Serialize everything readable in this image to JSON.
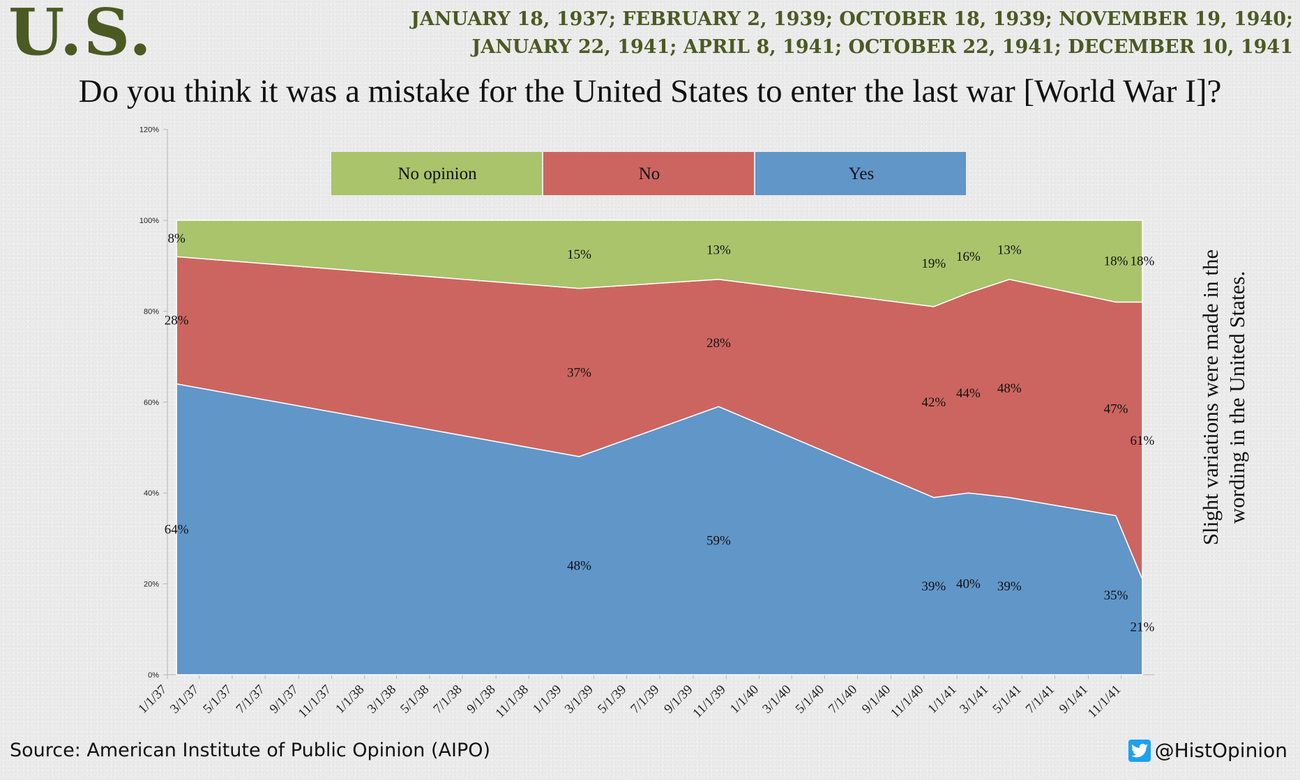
{
  "header": {
    "country": "U.S.",
    "dates_line1": "JANUARY 18, 1937; FEBRUARY 2, 1939; OCTOBER 18, 1939; NOVEMBER 19, 1940;",
    "dates_line2": "JANUARY 22, 1941; APRIL 8, 1941; OCTOBER 22, 1941; DECEMBER 10, 1941",
    "question": "Do you think it was a mistake for the United States to enter the last war [World War I]?"
  },
  "side_note": {
    "line1": "Slight variations were made in the",
    "line2": "wording in the United States."
  },
  "footer": {
    "source": "Source: American Institute of Public Opinion (AIPO)",
    "handle": "@HistOpinion",
    "handle_icon": "twitter-icon"
  },
  "colors": {
    "yes": "#6196c9",
    "no": "#cc6560",
    "no_opinion": "#a9c46b",
    "header_text": "#4b5a22",
    "twitter": "#1da1f2"
  },
  "chart_data": {
    "type": "area",
    "stacked": true,
    "x_axis": "date",
    "x": [
      "1937-01-18",
      "1939-02-02",
      "1939-10-18",
      "1940-11-19",
      "1941-01-22",
      "1941-04-08",
      "1941-10-22",
      "1941-12-10"
    ],
    "series": [
      {
        "name": "Yes",
        "color": "#6196c9",
        "values": [
          64,
          48,
          59,
          39,
          40,
          39,
          35,
          21
        ],
        "labels": [
          "64%",
          "48%",
          "59%",
          "39%",
          "40%",
          "39%",
          "35%",
          "21%"
        ]
      },
      {
        "name": "No",
        "color": "#cc6560",
        "values": [
          28,
          37,
          28,
          42,
          44,
          48,
          47,
          61
        ],
        "labels": [
          "28%",
          "37%",
          "28%",
          "42%",
          "44%",
          "48%",
          "47%",
          "61%"
        ]
      },
      {
        "name": "No opinion",
        "color": "#a9c46b",
        "values": [
          8,
          15,
          13,
          19,
          16,
          13,
          18,
          18
        ],
        "labels": [
          "8%",
          "15%",
          "13%",
          "19%",
          "16%",
          "13%",
          "18%",
          "18%"
        ]
      }
    ],
    "legend_order": [
      "No opinion",
      "No",
      "Yes"
    ],
    "legend_position": "top-center",
    "ylim": [
      0,
      120
    ],
    "yticks": [
      0,
      20,
      40,
      60,
      80,
      100,
      120
    ],
    "ytick_labels": [
      "0%",
      "20%",
      "40%",
      "60%",
      "80%",
      "100%",
      "120%"
    ],
    "xticks": [
      "1937-01-01",
      "1937-03-01",
      "1937-05-01",
      "1937-07-01",
      "1937-09-01",
      "1937-11-01",
      "1938-01-01",
      "1938-03-01",
      "1938-05-01",
      "1938-07-01",
      "1938-09-01",
      "1938-11-01",
      "1939-01-01",
      "1939-03-01",
      "1939-05-01",
      "1939-07-01",
      "1939-09-01",
      "1939-11-01",
      "1940-01-01",
      "1940-03-01",
      "1940-05-01",
      "1940-07-01",
      "1940-09-01",
      "1940-11-01",
      "1941-01-01",
      "1941-03-01",
      "1941-05-01",
      "1941-07-01",
      "1941-09-01",
      "1941-11-01"
    ],
    "xtick_labels": [
      "1/1/37",
      "3/1/37",
      "5/1/37",
      "7/1/37",
      "9/1/37",
      "11/1/37",
      "1/1/38",
      "3/1/38",
      "5/1/38",
      "7/1/38",
      "9/1/38",
      "11/1/38",
      "1/1/39",
      "3/1/39",
      "5/1/39",
      "7/1/39",
      "9/1/39",
      "11/1/39",
      "1/1/40",
      "3/1/40",
      "5/1/40",
      "7/1/40",
      "9/1/40",
      "11/1/40",
      "1/1/41",
      "3/1/41",
      "5/1/41",
      "7/1/41",
      "9/1/41",
      "11/1/41"
    ]
  }
}
